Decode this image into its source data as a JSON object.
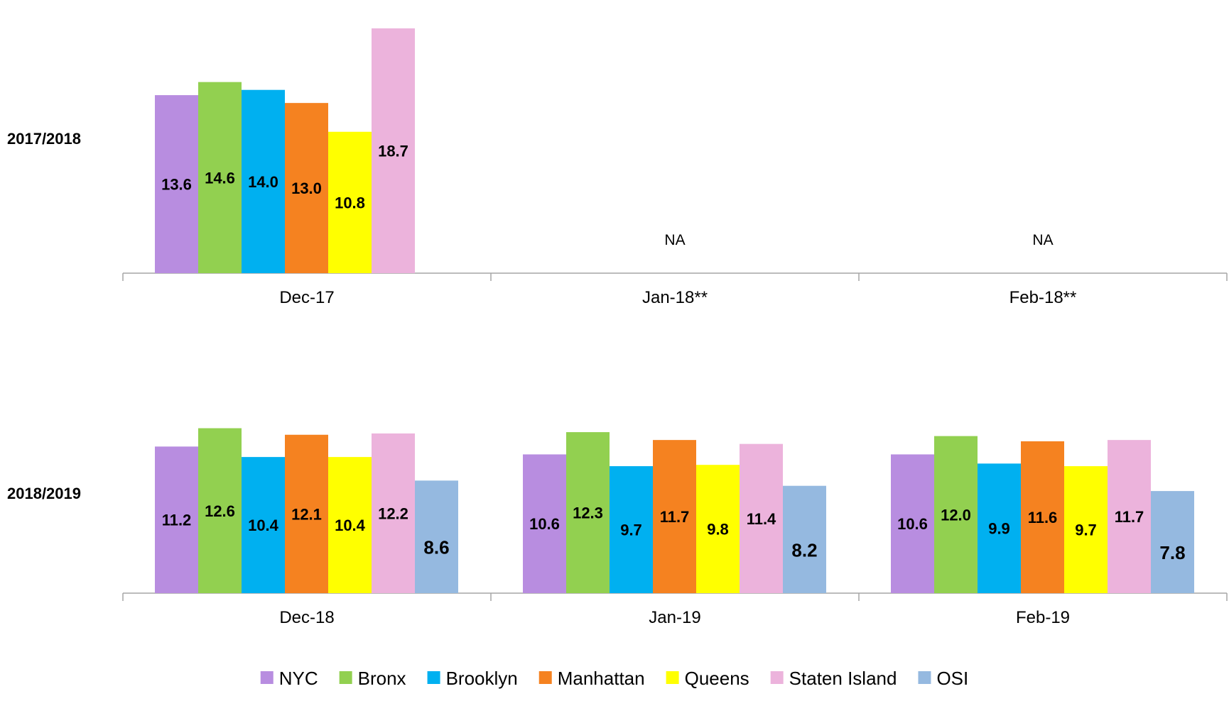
{
  "chart_data": {
    "type": "bar",
    "ylim": [
      0,
      19
    ],
    "legend_position": "bottom",
    "series": [
      {
        "name": "NYC",
        "color": "#b88de0"
      },
      {
        "name": "Bronx",
        "color": "#92d050"
      },
      {
        "name": "Brooklyn",
        "color": "#00b0f0"
      },
      {
        "name": "Manhattan",
        "color": "#f58220"
      },
      {
        "name": "Queens",
        "color": "#ffff00"
      },
      {
        "name": "Staten Island",
        "color": "#ecb3dc"
      },
      {
        "name": "OSI",
        "color": "#95b9e0"
      }
    ],
    "panels": [
      {
        "label": "2017/2018",
        "categories": [
          {
            "label": "Dec-17",
            "values": [
              13.6,
              14.6,
              14.0,
              13.0,
              10.8,
              18.7,
              null
            ],
            "display": [
              "13.6",
              "14.6",
              "14.0",
              "13.0",
              "10.8",
              "18.7",
              null
            ]
          },
          {
            "label": "Jan-18**",
            "values": null,
            "na_text": "NA"
          },
          {
            "label": "Feb-18**",
            "values": null,
            "na_text": "NA"
          }
        ]
      },
      {
        "label": "2018/2019",
        "categories": [
          {
            "label": "Dec-18",
            "values": [
              11.2,
              12.6,
              10.4,
              12.1,
              10.4,
              12.2,
              8.6
            ],
            "display": [
              "11.2",
              "12.6",
              "10.4",
              "12.1",
              "10.4",
              "12.2",
              "8.6"
            ]
          },
          {
            "label": "Jan-19",
            "values": [
              10.6,
              12.3,
              9.7,
              11.7,
              9.8,
              11.4,
              8.2
            ],
            "display": [
              "10.6",
              "12.3",
              "9.7",
              "11.7",
              "9.8",
              "11.4",
              "8.2"
            ]
          },
          {
            "label": "Feb-19",
            "values": [
              10.6,
              12.0,
              9.9,
              11.6,
              9.7,
              11.7,
              7.8
            ],
            "display": [
              "10.6",
              "12.0",
              "9.9",
              "11.6",
              "9.7",
              "11.7",
              "7.8"
            ]
          }
        ]
      }
    ]
  }
}
